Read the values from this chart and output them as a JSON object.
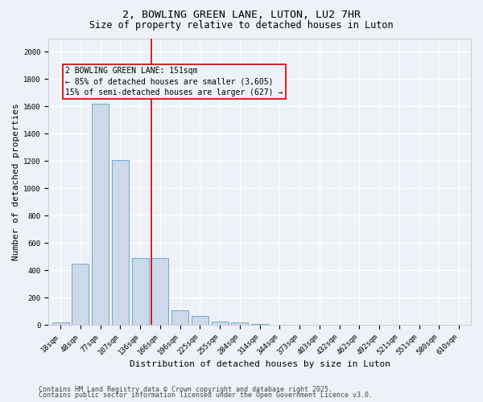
{
  "title1": "2, BOWLING GREEN LANE, LUTON, LU2 7HR",
  "title2": "Size of property relative to detached houses in Luton",
  "xlabel": "Distribution of detached houses by size in Luton",
  "ylabel": "Number of detached properties",
  "categories": [
    "18sqm",
    "48sqm",
    "77sqm",
    "107sqm",
    "136sqm",
    "166sqm",
    "196sqm",
    "225sqm",
    "255sqm",
    "284sqm",
    "314sqm",
    "344sqm",
    "373sqm",
    "403sqm",
    "432sqm",
    "462sqm",
    "492sqm",
    "521sqm",
    "551sqm",
    "580sqm",
    "610sqm"
  ],
  "values": [
    20,
    450,
    1620,
    1210,
    490,
    490,
    110,
    70,
    25,
    20,
    10,
    0,
    0,
    0,
    0,
    0,
    0,
    0,
    0,
    0,
    0
  ],
  "bar_color": "#ccd9ea",
  "bar_edge_color": "#6fa8d0",
  "vline_x": 4.55,
  "vline_color": "#cc0000",
  "annotation_line1": "2 BOWLING GREEN LANE: 151sqm",
  "annotation_line2": "← 85% of detached houses are smaller (3,605)",
  "annotation_line3": "15% of semi-detached houses are larger (627) →",
  "box_edge_color": "#cc0000",
  "ylim": [
    0,
    2100
  ],
  "yticks": [
    0,
    200,
    400,
    600,
    800,
    1000,
    1200,
    1400,
    1600,
    1800,
    2000
  ],
  "footer1": "Contains HM Land Registry data © Crown copyright and database right 2025.",
  "footer2": "Contains public sector information licensed under the Open Government Licence v3.0.",
  "bg_color": "#eef2f8",
  "plot_bg_color": "#eef2f8",
  "title_fontsize": 9.5,
  "subtitle_fontsize": 8.5,
  "axis_label_fontsize": 8,
  "tick_fontsize": 6.5,
  "annot_fontsize": 7,
  "footer_fontsize": 6
}
